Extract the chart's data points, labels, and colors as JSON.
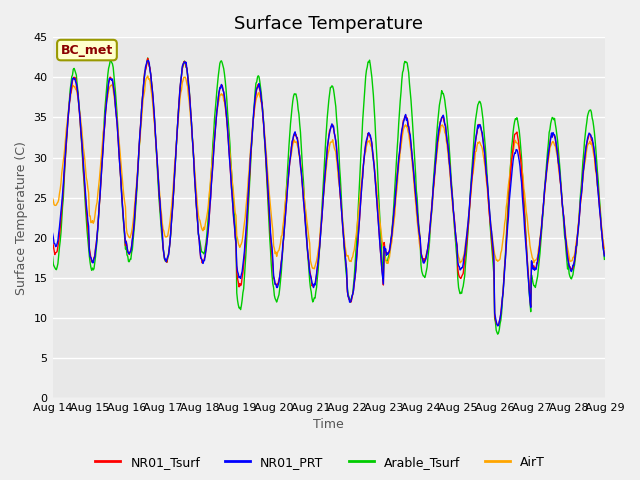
{
  "title": "Surface Temperature",
  "ylabel": "Surface Temperature (C)",
  "xlabel": "Time",
  "ylim": [
    0,
    45
  ],
  "fig_bg": "#f0f0f0",
  "plot_bg": "#e8e8e8",
  "annotation_text": "BC_met",
  "annotation_color": "#8b0000",
  "annotation_bg": "#ffffcc",
  "annotation_edge": "#999900",
  "series": [
    "NR01_Tsurf",
    "NR01_PRT",
    "Arable_Tsurf",
    "AirT"
  ],
  "colors": [
    "red",
    "blue",
    "#00cc00",
    "orange"
  ],
  "linewidth": 1.0,
  "n_days": 15,
  "start_day": 14,
  "samples_per_day": 48,
  "peak_hour": 14,
  "min_hour": 4,
  "daily_peaks_nr": [
    40,
    40,
    42,
    42,
    39,
    39,
    33,
    34,
    33,
    35,
    35,
    34,
    33,
    33,
    33
  ],
  "daily_mins_nr": [
    18,
    17,
    18,
    17,
    17,
    14,
    14,
    14,
    12,
    18,
    17,
    15,
    9,
    16,
    16
  ],
  "daily_peaks_prt": [
    40,
    40,
    42,
    42,
    39,
    39,
    33,
    34,
    33,
    35,
    35,
    34,
    31,
    33,
    33
  ],
  "daily_mins_prt": [
    19,
    17,
    18,
    17,
    17,
    15,
    14,
    14,
    12,
    18,
    17,
    16,
    9,
    16,
    16
  ],
  "daily_peaks_arable": [
    41,
    42,
    42,
    42,
    42,
    40,
    38,
    39,
    42,
    42,
    38,
    37,
    35,
    35,
    36
  ],
  "daily_mins_arable": [
    16,
    16,
    17,
    17,
    18,
    11,
    12,
    12,
    12,
    17,
    15,
    13,
    8,
    14,
    15
  ],
  "daily_peaks_air": [
    39,
    39,
    40,
    40,
    38,
    38,
    32,
    32,
    32,
    34,
    34,
    32,
    32,
    32,
    32
  ],
  "daily_mins_air": [
    24,
    22,
    20,
    20,
    21,
    19,
    18,
    16,
    17,
    17,
    17,
    17,
    17,
    17,
    17
  ],
  "title_fontsize": 13,
  "tick_fontsize": 8,
  "label_fontsize": 9,
  "legend_fontsize": 9
}
